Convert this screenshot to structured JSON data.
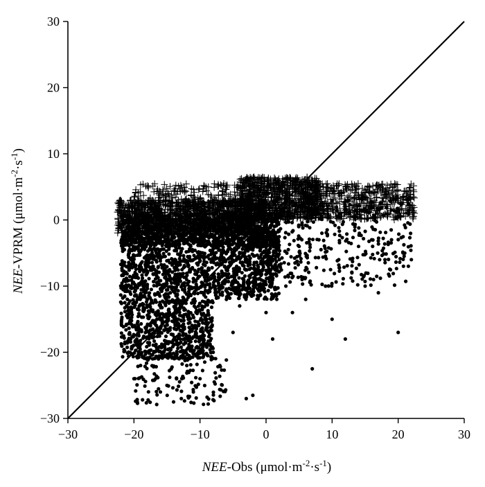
{
  "chart_data": {
    "type": "scatter",
    "title": "",
    "xlabel": {
      "italic_part": "NEE",
      "rest": "-Obs (μmol·m",
      "sup1": "-2",
      "mid": "·s",
      "sup2": "-1",
      "end": ")"
    },
    "ylabel": {
      "italic_part": "NEE",
      "rest": "-VPRM (μmol·m",
      "sup1": "-2",
      "mid": "·s",
      "sup2": "-1",
      "end": ")"
    },
    "xlim": [
      -30,
      30
    ],
    "ylim": [
      -30,
      30
    ],
    "xticks": [
      -30,
      -20,
      -10,
      0,
      10,
      20,
      30
    ],
    "yticks": [
      -30,
      -20,
      -10,
      0,
      10,
      20,
      30
    ],
    "x_tick_labels": [
      "−30",
      "−20",
      "−10",
      "0",
      "10",
      "20",
      "30"
    ],
    "y_tick_labels": [
      "−30",
      "−20",
      "−10",
      "0",
      "10",
      "20",
      "30"
    ],
    "grid": false,
    "reference_line": {
      "type": "1:1",
      "from": [
        -30,
        -30
      ],
      "to": [
        30,
        30
      ]
    },
    "series": [
      {
        "marker": "filled-circle",
        "description_points": [
          [
            -21.5,
            -8
          ],
          [
            -21,
            -12
          ],
          [
            -20.5,
            -18
          ],
          [
            -20,
            -24
          ],
          [
            -19.5,
            -27.5
          ],
          [
            -19,
            -22
          ],
          [
            -18,
            -10
          ],
          [
            -17.5,
            -16
          ],
          [
            -17,
            -20
          ],
          [
            -16,
            -26
          ],
          [
            -15,
            -25
          ],
          [
            -14,
            -27.5
          ],
          [
            -13,
            -18
          ],
          [
            -12,
            -22
          ],
          [
            -11,
            -26
          ],
          [
            -10,
            -24
          ],
          [
            -9,
            -15
          ],
          [
            -8,
            -20
          ],
          [
            -7,
            -22
          ],
          [
            -6,
            -12
          ],
          [
            -5,
            -17
          ],
          [
            -4,
            -13
          ],
          [
            -3,
            -27
          ],
          [
            -2,
            -26.5
          ],
          [
            -1,
            -8
          ],
          [
            0,
            -14
          ],
          [
            1,
            -18
          ],
          [
            2,
            -6
          ],
          [
            3,
            -10
          ],
          [
            4,
            -14
          ],
          [
            5,
            -4
          ],
          [
            6,
            -12
          ],
          [
            7,
            -22.5
          ],
          [
            8,
            -3
          ],
          [
            9,
            -10
          ],
          [
            10,
            -15
          ],
          [
            11,
            -6
          ],
          [
            12,
            -18
          ],
          [
            13,
            -8
          ],
          [
            14,
            -4
          ],
          [
            15,
            -10
          ],
          [
            16,
            -3
          ],
          [
            17,
            -11
          ],
          [
            18,
            -6
          ],
          [
            19,
            -3
          ],
          [
            20,
            -17
          ],
          [
            21,
            -5
          ],
          [
            22,
            -6
          ]
        ],
        "dense_regions": [
          {
            "x": [
              -22,
              -8
            ],
            "y": [
              -21,
              -2
            ],
            "n": 1500
          },
          {
            "x": [
              -8,
              2
            ],
            "y": [
              -12,
              -1
            ],
            "n": 700
          },
          {
            "x": [
              -22,
              2
            ],
            "y": [
              -4,
              1
            ],
            "n": 800
          },
          {
            "x": [
              0,
              22
            ],
            "y": [
              -10,
              3
            ],
            "n": 350
          },
          {
            "x": [
              -20,
              -6
            ],
            "y": [
              -28,
              -20
            ],
            "n": 120
          }
        ]
      },
      {
        "marker": "plus",
        "dense_regions": [
          {
            "x": [
              -22.5,
              0
            ],
            "y": [
              -2,
              3
            ],
            "n": 1400
          },
          {
            "x": [
              -20,
              -2
            ],
            "y": [
              2,
              5.5
            ],
            "n": 220
          },
          {
            "x": [
              -4,
              8
            ],
            "y": [
              0,
              6.5
            ],
            "n": 900
          },
          {
            "x": [
              6,
              22.5
            ],
            "y": [
              0,
              5.5
            ],
            "n": 550
          }
        ]
      }
    ]
  }
}
